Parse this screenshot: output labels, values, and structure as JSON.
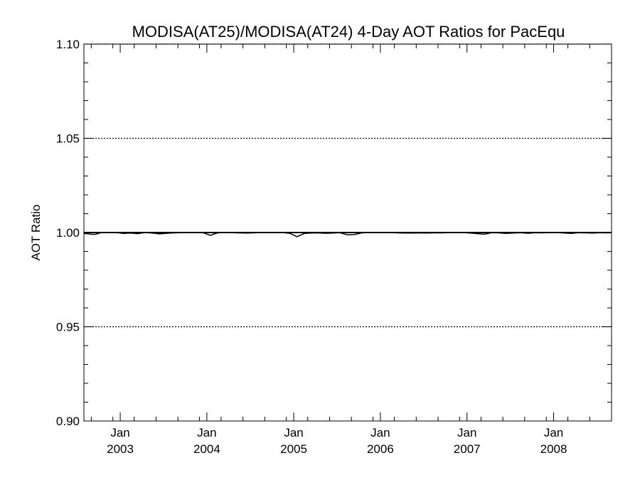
{
  "chart_data": {
    "type": "line",
    "title": "MODISA(AT25)/MODISA(AT24) 4-Day AOT Ratios for PacEqu",
    "xlabel": "",
    "ylabel": "AOT Ratio",
    "xlim": [
      "2002-08-01",
      "2008-09-01"
    ],
    "ylim": [
      0.9,
      1.1
    ],
    "y_ticks": [
      {
        "value": 0.9,
        "label": "0.90"
      },
      {
        "value": 0.95,
        "label": "0.95"
      },
      {
        "value": 1.0,
        "label": "1.00"
      },
      {
        "value": 1.05,
        "label": "1.05"
      },
      {
        "value": 1.1,
        "label": "1.10"
      }
    ],
    "x_ticks": [
      {
        "date": "2003-01-01",
        "month": "Jan",
        "year": "2003"
      },
      {
        "date": "2004-01-01",
        "month": "Jan",
        "year": "2004"
      },
      {
        "date": "2005-01-01",
        "month": "Jan",
        "year": "2005"
      },
      {
        "date": "2006-01-01",
        "month": "Jan",
        "year": "2006"
      },
      {
        "date": "2007-01-01",
        "month": "Jan",
        "year": "2007"
      },
      {
        "date": "2008-01-01",
        "month": "Jan",
        "year": "2008"
      }
    ],
    "grid_y_dotted": [
      0.95,
      1.05,
      1.1
    ],
    "reference_line": 1.0,
    "series": [
      {
        "x": [
          "2002-08-01",
          "2002-09-15",
          "2002-10-15",
          "2002-11-15",
          "2002-12-15",
          "2003-01-15",
          "2003-02-15",
          "2003-03-15",
          "2003-04-15",
          "2003-05-15",
          "2003-06-15",
          "2003-07-15",
          "2003-08-15",
          "2003-09-15",
          "2003-10-15",
          "2003-11-15",
          "2003-12-15",
          "2004-01-15",
          "2004-02-15",
          "2004-03-15",
          "2004-04-15",
          "2004-05-15",
          "2004-06-15",
          "2004-07-15",
          "2004-08-15",
          "2004-09-15",
          "2004-10-15",
          "2004-11-15",
          "2004-12-15",
          "2005-01-15",
          "2005-02-15",
          "2005-03-15",
          "2005-04-15",
          "2005-05-15",
          "2005-06-15",
          "2005-07-15",
          "2005-08-15",
          "2005-09-15",
          "2005-10-15",
          "2005-11-15",
          "2005-12-15",
          "2006-01-15",
          "2006-02-15",
          "2006-03-15",
          "2006-04-15",
          "2006-05-15",
          "2006-06-15",
          "2006-07-15",
          "2006-08-15",
          "2006-09-15",
          "2006-10-15",
          "2006-11-15",
          "2006-12-15",
          "2007-01-15",
          "2007-02-15",
          "2007-03-15",
          "2007-04-15",
          "2007-05-15",
          "2007-06-15",
          "2007-07-15",
          "2007-08-15",
          "2007-09-15",
          "2007-10-15",
          "2007-11-15",
          "2007-12-15",
          "2008-01-15",
          "2008-02-15",
          "2008-03-15",
          "2008-04-15",
          "2008-05-15",
          "2008-06-15",
          "2008-07-15",
          "2008-08-15",
          "2008-09-01"
        ],
        "values": [
          0.9995,
          0.999,
          1.0,
          1.0,
          1.0,
          0.9995,
          0.9997,
          0.9994,
          1.0,
          0.9997,
          0.9993,
          0.9996,
          0.9998,
          0.9999,
          1.0,
          1.0,
          1.0,
          0.9985,
          0.9998,
          1.0,
          0.9999,
          0.9998,
          0.9997,
          0.9998,
          1.0,
          0.9999,
          1.0,
          1.0,
          0.9996,
          0.9978,
          0.9995,
          0.9997,
          0.9998,
          0.9996,
          0.9997,
          0.9999,
          0.9988,
          0.999,
          0.9998,
          1.0,
          1.0,
          1.0,
          1.0,
          0.9998,
          0.9997,
          0.9997,
          0.9998,
          0.9997,
          0.9998,
          0.9998,
          0.9999,
          1.0,
          1.0,
          0.9997,
          0.9994,
          0.9991,
          0.9999,
          0.9998,
          0.9995,
          0.9997,
          0.9999,
          0.9996,
          0.9999,
          0.9998,
          1.0,
          1.0,
          0.9997,
          0.9995,
          0.9999,
          0.9998,
          0.9997,
          0.9999,
          0.9998,
          0.9999
        ]
      }
    ]
  }
}
